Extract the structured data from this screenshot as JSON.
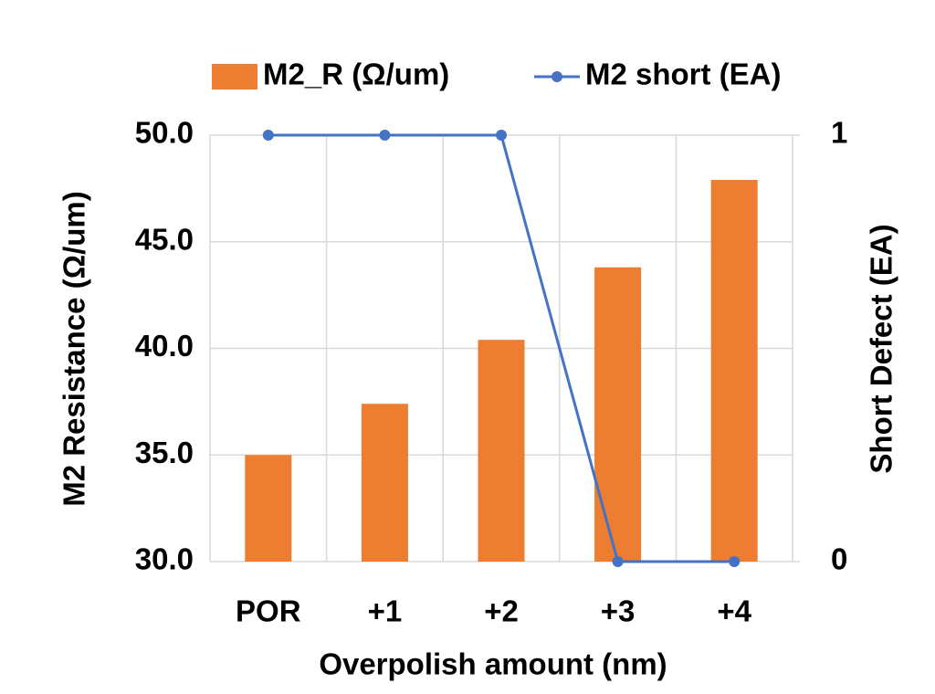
{
  "chart_data": {
    "type": "bar",
    "categories": [
      "POR",
      "+1",
      "+2",
      "+3",
      "+4"
    ],
    "x_label": "Overpolish amount (nm)",
    "y_label": "M2 Resistance (Ω/um)",
    "y2_label": "Short Defect (EA)",
    "series": [
      {
        "name": "M2_R (Ω/um)",
        "type": "bar",
        "color": "#ed7d31",
        "values": [
          35.0,
          37.4,
          40.4,
          43.8,
          47.9
        ]
      },
      {
        "name": "M2 short (EA)",
        "type": "line",
        "axis": "y2",
        "color": "#4472c4",
        "values": [
          1,
          1,
          1,
          0,
          0
        ]
      }
    ],
    "ylim": [
      30,
      50
    ],
    "yticks": [
      {
        "value": 30,
        "label": "30.0"
      },
      {
        "value": 35,
        "label": "35.0"
      },
      {
        "value": 40,
        "label": "40.0"
      },
      {
        "value": 45,
        "label": "45.0"
      },
      {
        "value": 50,
        "label": "50.0"
      }
    ],
    "y2lim": [
      0,
      1
    ],
    "y2ticks": [
      0,
      1
    ],
    "grid": true,
    "legend": "top"
  }
}
